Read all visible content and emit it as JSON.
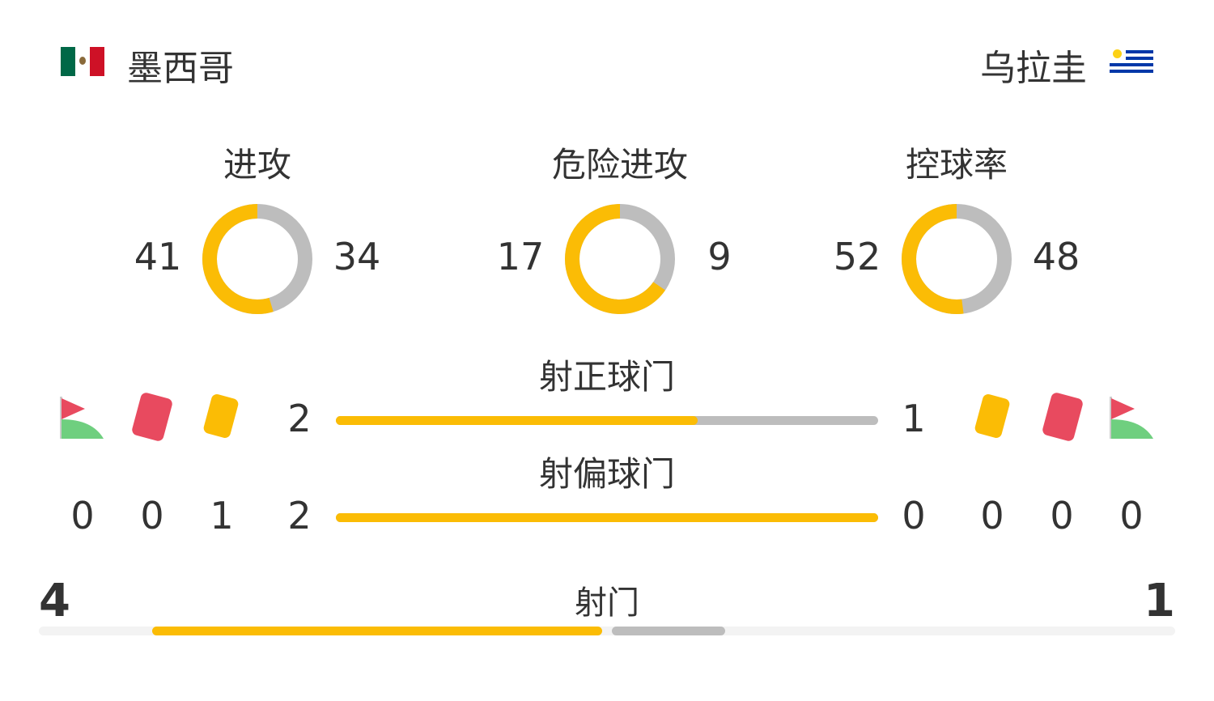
{
  "home": {
    "name": "墨西哥",
    "flag": "mexico-flag"
  },
  "away": {
    "name": "乌拉圭",
    "flag": "uruguay-flag"
  },
  "colors": {
    "home": "#fbbc05",
    "away": "#bdbdbd",
    "red_card": "#e84a5f",
    "yellow_card": "#fbbc05"
  },
  "donuts": [
    {
      "label": "进攻",
      "home": "41",
      "away": "34"
    },
    {
      "label": "危险进攻",
      "home": "17",
      "away": "9"
    },
    {
      "label": "控球率",
      "home": "52",
      "away": "48"
    }
  ],
  "shots_on": {
    "label": "射正球门",
    "home": "2",
    "away": "1"
  },
  "shots_off": {
    "label": "射偏球门",
    "home": "2",
    "away": "0"
  },
  "home_events": {
    "corners": "0",
    "red_cards": "0",
    "yellow_cards": "1"
  },
  "away_events": {
    "corners": "0",
    "red_cards": "0",
    "yellow_cards": "0"
  },
  "shots": {
    "label": "射门",
    "home": "4",
    "away": "1"
  }
}
